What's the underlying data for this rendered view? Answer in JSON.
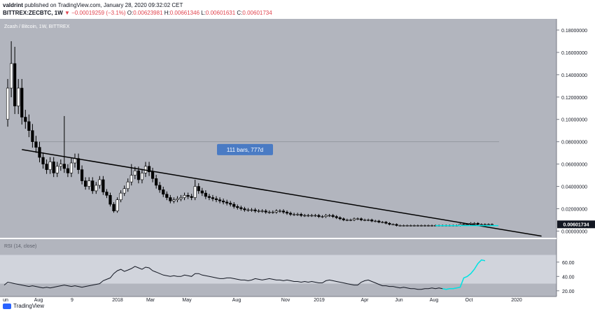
{
  "header": {
    "author": "valdrint",
    "published_text": "published on TradingView.com, January 28, 2020 09:32:02 CET",
    "symbol": "BITTREX:ZECBTC, 1W",
    "change": "▼ −0.00019259 (−3.1%)",
    "open_label": "O:",
    "open": "0.00623981",
    "high_label": "H:",
    "high": "0.00661346",
    "low_label": "L:",
    "low": "0.00601631",
    "close_label": "C:",
    "close": "0.00601734"
  },
  "chart_data": [
    {
      "type": "candlestick",
      "title": "Zcash / Bitcoin, 1W, BITTREX",
      "ylim": [
        -0.006,
        0.19
      ],
      "y_ticks": [
        "0.18000000",
        "0.16000000",
        "0.14000000",
        "0.12000000",
        "0.10000000",
        "0.08000000",
        "0.06000000",
        "0.04000000",
        "0.02000000",
        "0.00000000"
      ],
      "y_tick_values": [
        0.18,
        0.16,
        0.14,
        0.12,
        0.1,
        0.08,
        0.06,
        0.04,
        0.02,
        0.0
      ],
      "last_price_label": "0.00601734",
      "annotation": "111 bars, 777d",
      "x_ticks": [
        "un",
        "Aug",
        "9",
        "2018",
        "Mar",
        "May",
        "Aug",
        "Nov",
        "2019",
        "Apr",
        "Jun",
        "Aug",
        "Oct",
        "2020"
      ],
      "colors": {
        "background": "#b2b5be",
        "up": "#ffffff",
        "down": "#000000",
        "trendline": "#000000",
        "highlight": "#00e5e5"
      },
      "trendline": {
        "start": [
          5,
          0.073
        ],
        "end": [
          152,
          -0.0045
        ]
      },
      "hline": {
        "start": [
          10,
          0.08
        ],
        "end": [
          140,
          0.08
        ]
      }
    },
    {
      "type": "line",
      "title": "RSI (14, close)",
      "ylim": [
        12,
        92
      ],
      "y_ticks": [
        "60.00",
        "40.00",
        "20.00"
      ],
      "y_tick_values": [
        60,
        40,
        20
      ],
      "band": [
        30,
        70
      ],
      "colors": {
        "line": "#131722",
        "band": "#d1d4dc",
        "background": "#b2b5be",
        "highlight": "#00e5e5"
      }
    }
  ],
  "footer": {
    "logo_text": "TradingView"
  }
}
